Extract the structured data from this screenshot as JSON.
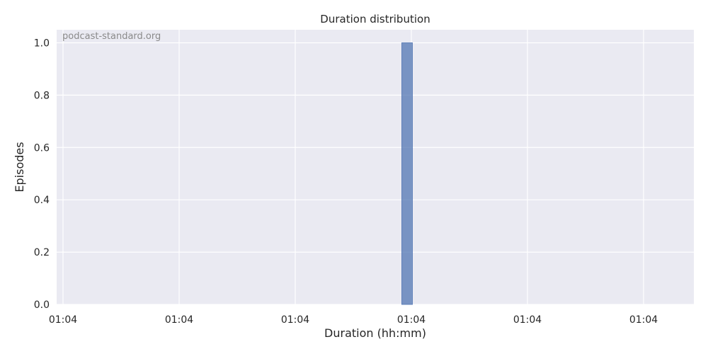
{
  "chart_data": {
    "type": "bar",
    "title": "Duration distribution",
    "xlabel": "Duration (hh:mm)",
    "ylabel": "Episodes",
    "watermark": "podcast-standard.org",
    "x_tick_labels": [
      "01:04",
      "01:04",
      "01:04",
      "01:04",
      "01:04",
      "01:04"
    ],
    "y_ticks": [
      0.0,
      0.2,
      0.4,
      0.6,
      0.8,
      1.0
    ],
    "y_tick_labels": [
      "0.0",
      "0.2",
      "0.4",
      "0.6",
      "0.8",
      "1.0"
    ],
    "ylim": [
      0,
      1.05
    ],
    "bins": [
      {
        "position": 0.55,
        "value": 1
      }
    ],
    "grid": true,
    "colors": {
      "plot_background": "#eaeaf2",
      "grid": "#ffffff",
      "bar": "#4c72b0"
    }
  }
}
